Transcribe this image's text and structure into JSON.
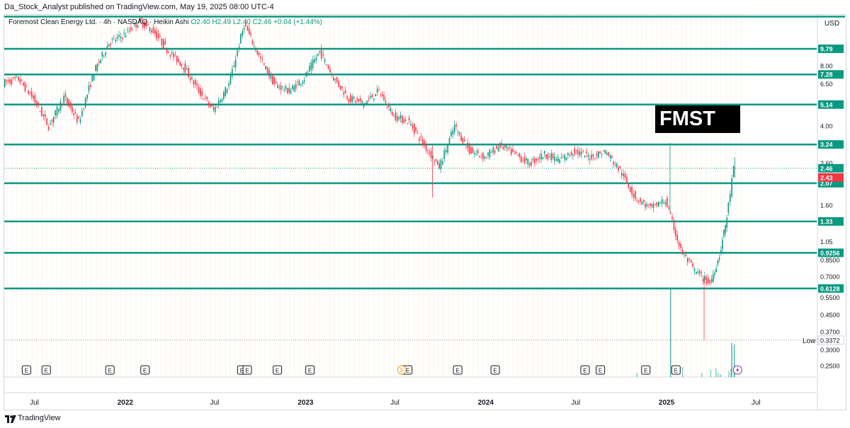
{
  "header": {
    "publisher": "Da_Stock_Analyst published on TradingView.com, May 19, 2025 08:00 UTC-4"
  },
  "legend": {
    "symbol": "Foremost Clean Energy Ltd. · 4h · NASDAQ · Heikin Ashi",
    "values": "O2.40 H2.49 L2.40 C2.46 +0.04 (+1.44%)"
  },
  "currency": "USD",
  "ticker_label": "FMST",
  "low_label": "Low",
  "brand": "TradingView",
  "colors": {
    "level_line": "#089981",
    "up": "#089981",
    "down": "#f23645",
    "grid": "#f0f3fa",
    "axis_text": "#131722"
  },
  "chart_data": {
    "type": "line",
    "price_scale": "log",
    "ylim": [
      0.22,
      14.5
    ],
    "x_ticks": [
      "Jul",
      "2022",
      "Jul",
      "2023",
      "Jul",
      "2024",
      "Jul",
      "2025",
      "Jul"
    ],
    "y_ticks": [
      "8.00",
      "6.50",
      "4.00",
      "2.60",
      "1.60",
      "1.05",
      "0.8500",
      "0.7000",
      "0.5500",
      "0.4500",
      "0.3700",
      "0.3000",
      "0.2500"
    ],
    "horizontal_levels": [
      "9.79",
      "7.28",
      "5.14",
      "3.24",
      "2.07",
      "1.33",
      "0.9256",
      "0.6128"
    ],
    "top_level": 14.2,
    "current_price": {
      "close": "2.46",
      "open": "2.43"
    },
    "low": "0.3372",
    "earnings_markers": [
      "E",
      "E",
      "E",
      "E",
      "E",
      "E",
      "E",
      "E",
      "E",
      "E",
      "E",
      "E",
      "E",
      "E",
      "E",
      "E",
      "E"
    ],
    "split_marker": "S",
    "price_path": [
      {
        "x": "2021-05",
        "y": 6.6
      },
      {
        "x": "2021-06",
        "y": 6.9
      },
      {
        "x": "2021-07",
        "y": 5.5
      },
      {
        "x": "2021-08",
        "y": 4.0
      },
      {
        "x": "2021-09",
        "y": 5.6
      },
      {
        "x": "2021-10",
        "y": 4.2
      },
      {
        "x": "2021-11",
        "y": 7.5
      },
      {
        "x": "2021-12",
        "y": 10.5
      },
      {
        "x": "2022-01",
        "y": 11.5
      },
      {
        "x": "2022-02",
        "y": 13.5
      },
      {
        "x": "2022-03",
        "y": 12.0
      },
      {
        "x": "2022-04",
        "y": 9.5
      },
      {
        "x": "2022-05",
        "y": 8.0
      },
      {
        "x": "2022-06",
        "y": 6.0
      },
      {
        "x": "2022-07",
        "y": 4.8
      },
      {
        "x": "2022-08",
        "y": 6.5
      },
      {
        "x": "2022-09",
        "y": 13.0
      },
      {
        "x": "2022-10",
        "y": 9.0
      },
      {
        "x": "2022-11",
        "y": 6.5
      },
      {
        "x": "2022-12",
        "y": 6.0
      },
      {
        "x": "2023-01",
        "y": 7.0
      },
      {
        "x": "2023-02",
        "y": 9.5
      },
      {
        "x": "2023-03",
        "y": 7.0
      },
      {
        "x": "2023-04",
        "y": 5.5
      },
      {
        "x": "2023-05",
        "y": 5.2
      },
      {
        "x": "2023-06",
        "y": 6.0
      },
      {
        "x": "2023-07",
        "y": 4.5
      },
      {
        "x": "2023-08",
        "y": 4.2
      },
      {
        "x": "2023-09",
        "y": 3.2
      },
      {
        "x": "2023-10",
        "y": 2.5
      },
      {
        "x": "2023-11",
        "y": 4.0
      },
      {
        "x": "2023-12",
        "y": 3.0
      },
      {
        "x": "2024-01",
        "y": 2.8
      },
      {
        "x": "2024-02",
        "y": 3.2
      },
      {
        "x": "2024-03",
        "y": 2.9
      },
      {
        "x": "2024-04",
        "y": 2.6
      },
      {
        "x": "2024-05",
        "y": 2.9
      },
      {
        "x": "2024-06",
        "y": 2.7
      },
      {
        "x": "2024-07",
        "y": 3.0
      },
      {
        "x": "2024-08",
        "y": 2.8
      },
      {
        "x": "2024-09",
        "y": 3.0
      },
      {
        "x": "2024-10",
        "y": 2.4
      },
      {
        "x": "2024-11",
        "y": 1.75
      },
      {
        "x": "2024-12",
        "y": 1.55
      },
      {
        "x": "2025-01",
        "y": 1.7
      },
      {
        "x": "2025-02",
        "y": 0.95
      },
      {
        "x": "2025-03",
        "y": 0.75
      },
      {
        "x": "2025-04",
        "y": 0.65
      },
      {
        "x": "2025-04-20",
        "y": 0.9
      },
      {
        "x": "2025-05-05",
        "y": 1.4
      },
      {
        "x": "2025-05-19",
        "y": 2.46
      }
    ]
  }
}
